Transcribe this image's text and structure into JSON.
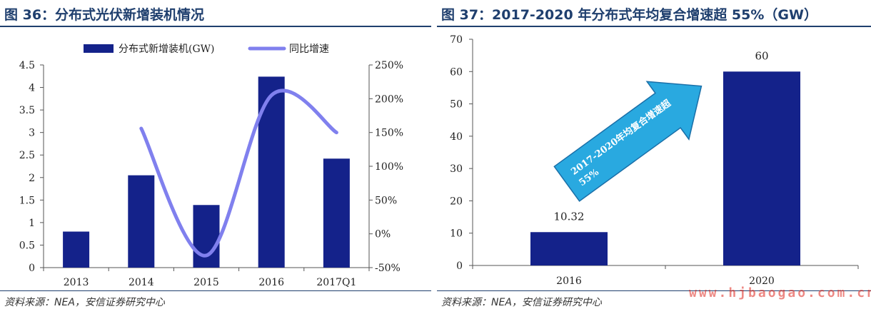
{
  "left": {
    "title": "图 36：分布式光伏新增装机情况",
    "source": "资料来源：NEA，安信证券研究中心"
  },
  "right": {
    "title": "图 37：2017-2020 年分布式年均复合增速超 55%（GW）",
    "source": "资料来源：NEA，安信证券研究中心"
  },
  "watermark": "www.hjbaogao.com.cn",
  "chart_data": [
    {
      "type": "bar",
      "title": "分布式光伏新增装机情况",
      "categories": [
        "2013",
        "2014",
        "2015",
        "2016",
        "2017Q1"
      ],
      "series": [
        {
          "name": "分布式新增装机(GW)",
          "kind": "bar",
          "axis": "left",
          "color": "#14228a",
          "values": [
            0.8,
            2.05,
            1.39,
            4.24,
            2.42
          ]
        },
        {
          "name": "同比增速",
          "kind": "line",
          "axis": "right",
          "color": "#8080ee",
          "values": [
            null,
            1.56,
            -0.32,
            2.05,
            1.5
          ]
        }
      ],
      "ylim": [
        0,
        4.5
      ],
      "yticks": [
        "0",
        "0.5",
        "1",
        "1.5",
        "2",
        "2.5",
        "3",
        "3.5",
        "4",
        "4.5"
      ],
      "y2lim": [
        -0.5,
        2.5
      ],
      "y2ticks": [
        "-50%",
        "0%",
        "50%",
        "100%",
        "150%",
        "200%",
        "250%"
      ],
      "legend_position": "top"
    },
    {
      "type": "bar",
      "title": "2017-2020 年分布式年均复合增速超 55%（GW）",
      "categories": [
        "2016",
        "2020"
      ],
      "values": [
        10.32,
        60
      ],
      "value_labels": [
        "10.32",
        "60"
      ],
      "color": "#14228a",
      "ylim": [
        0,
        70
      ],
      "yticks": [
        "0",
        "10",
        "20",
        "30",
        "40",
        "50",
        "60",
        "70"
      ],
      "annotation": {
        "line1": "2017-2020年均复合增速超",
        "line2": "55%",
        "fill": "#29a9e0"
      }
    }
  ]
}
